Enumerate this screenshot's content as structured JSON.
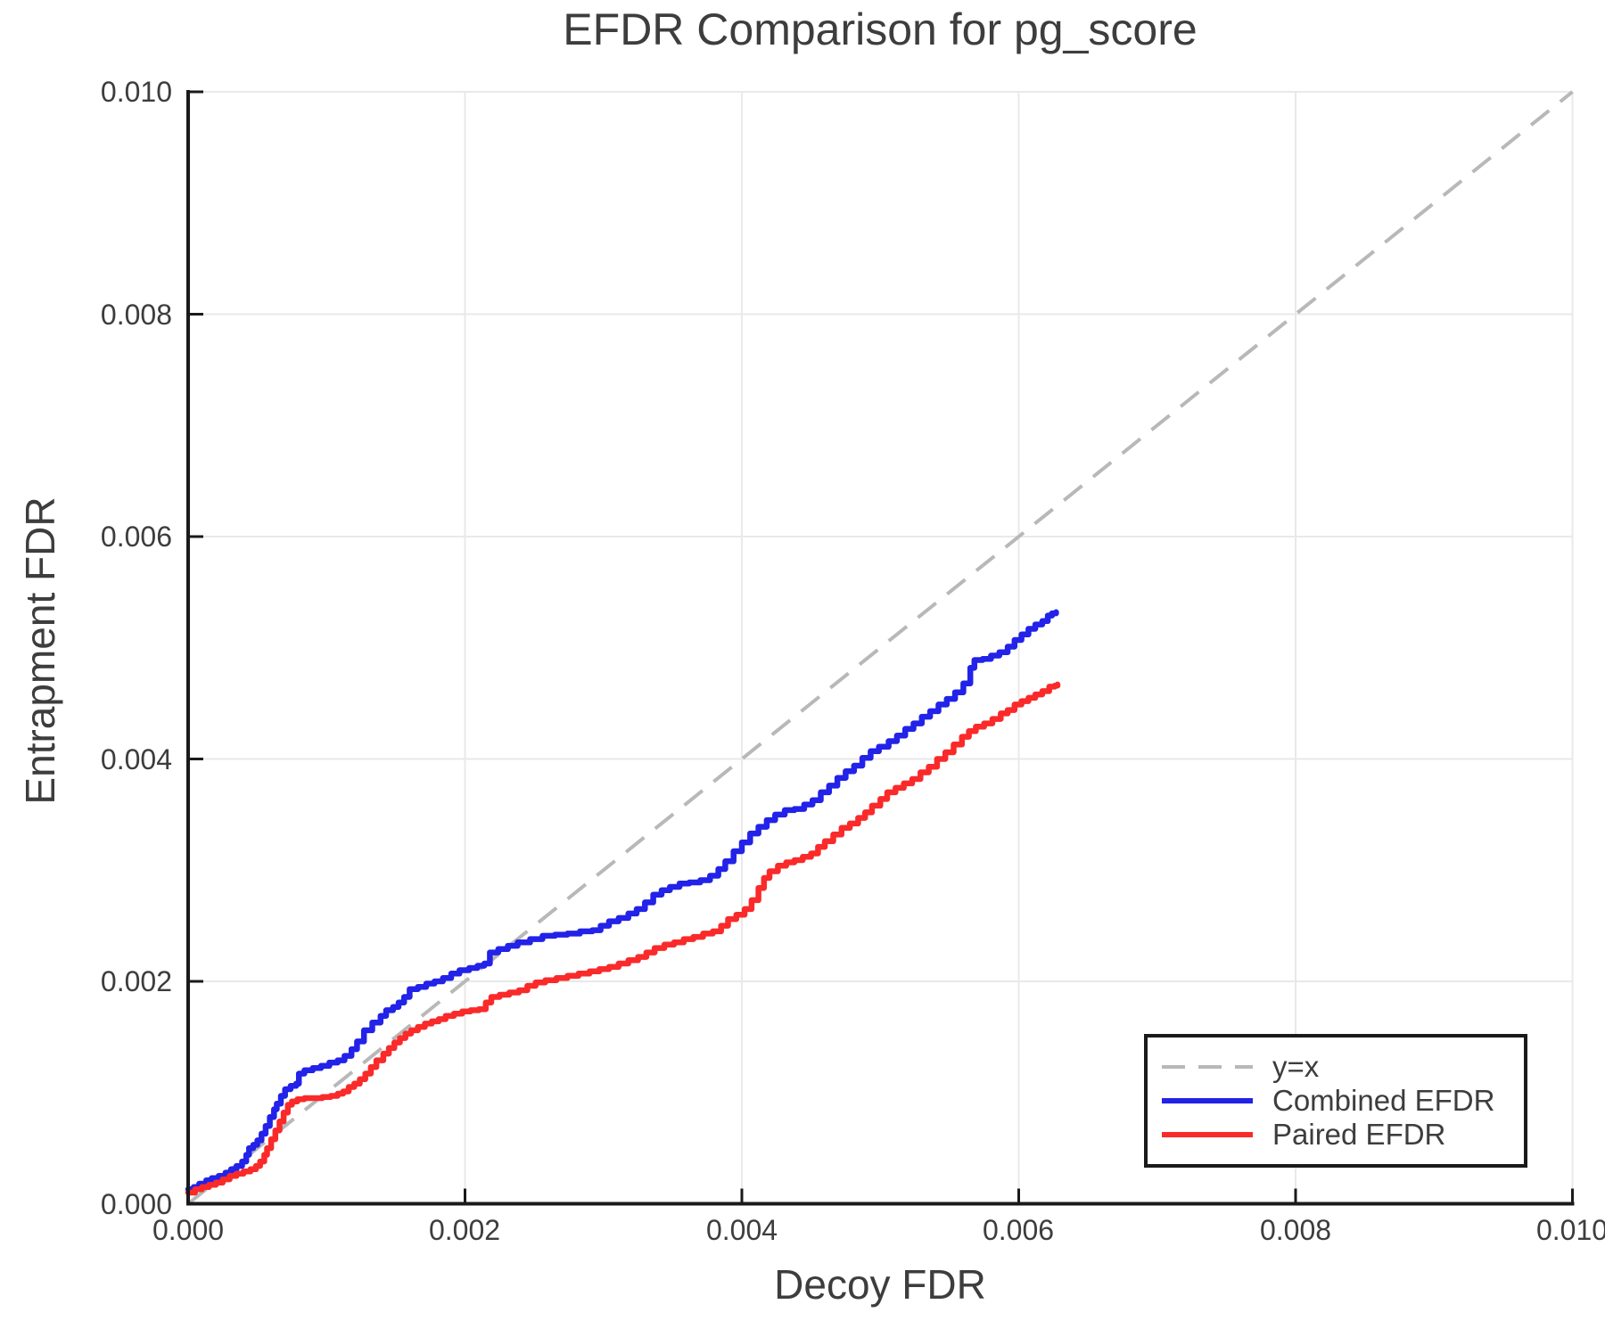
{
  "chart_data": {
    "type": "line",
    "title": "EFDR Comparison for pg_score",
    "xlabel": "Decoy FDR",
    "ylabel": "Entrapment FDR",
    "xlim": [
      0.0,
      0.01
    ],
    "ylim": [
      0.0,
      0.01
    ],
    "grid": true,
    "legend_position": "lower right",
    "x_ticks": [
      0.0,
      0.002,
      0.004,
      0.006,
      0.008,
      0.01
    ],
    "x_tick_labels": [
      "0.000",
      "0.002",
      "0.004",
      "0.006",
      "0.008",
      "0.010"
    ],
    "y_ticks": [
      0.0,
      0.002,
      0.004,
      0.006,
      0.008,
      0.01
    ],
    "y_tick_labels": [
      "0.000",
      "0.002",
      "0.004",
      "0.006",
      "0.008",
      "0.010"
    ],
    "colors": {
      "background": "#ffffff",
      "text": "#3d3d3d",
      "grid": "#e9e9e9",
      "spine": "#1a1a1a",
      "identity": "#b8b8b8",
      "combined": "#2222e8",
      "paired": "#fa2a2a"
    },
    "identity_line": {
      "label": "y=x",
      "color": "#b8b8b8",
      "style": "dashed",
      "x": [
        0.0,
        0.01
      ],
      "y": [
        0.0,
        0.01
      ]
    },
    "series": [
      {
        "name": "Combined EFDR",
        "color": "#2222e8",
        "points": [
          [
            0.0,
            0.00013
          ],
          [
            4e-05,
            0.00015
          ],
          [
            8e-05,
            0.00018
          ],
          [
            0.00013,
            0.00021
          ],
          [
            0.00017,
            0.00023
          ],
          [
            0.00022,
            0.00025
          ],
          [
            0.00027,
            0.00028
          ],
          [
            0.00031,
            0.00031
          ],
          [
            0.00035,
            0.00034
          ],
          [
            0.00039,
            0.00038
          ],
          [
            0.00042,
            0.00044
          ],
          [
            0.00044,
            0.0005
          ],
          [
            0.00047,
            0.00053
          ],
          [
            0.0005,
            0.00057
          ],
          [
            0.00053,
            0.00063
          ],
          [
            0.00056,
            0.0007
          ],
          [
            0.00059,
            0.00078
          ],
          [
            0.00062,
            0.00085
          ],
          [
            0.00064,
            0.0009
          ],
          [
            0.00067,
            0.00097
          ],
          [
            0.0007,
            0.00103
          ],
          [
            0.00074,
            0.00106
          ],
          [
            0.00078,
            0.00108
          ],
          [
            0.0008,
            0.00117
          ],
          [
            0.00084,
            0.0012
          ],
          [
            0.0009,
            0.00122
          ],
          [
            0.00096,
            0.00124
          ],
          [
            0.00102,
            0.00127
          ],
          [
            0.00108,
            0.00129
          ],
          [
            0.00113,
            0.00133
          ],
          [
            0.00118,
            0.00139
          ],
          [
            0.00122,
            0.00146
          ],
          [
            0.00127,
            0.00156
          ],
          [
            0.00133,
            0.00163
          ],
          [
            0.00139,
            0.00169
          ],
          [
            0.00143,
            0.00174
          ],
          [
            0.00148,
            0.00177
          ],
          [
            0.00152,
            0.00181
          ],
          [
            0.00156,
            0.00186
          ],
          [
            0.0016,
            0.00193
          ],
          [
            0.00166,
            0.00195
          ],
          [
            0.00172,
            0.00198
          ],
          [
            0.00178,
            0.002
          ],
          [
            0.00184,
            0.00203
          ],
          [
            0.0019,
            0.00207
          ],
          [
            0.00196,
            0.0021
          ],
          [
            0.00203,
            0.00212
          ],
          [
            0.00209,
            0.00214
          ],
          [
            0.00214,
            0.00216
          ],
          [
            0.00218,
            0.00226
          ],
          [
            0.00224,
            0.00229
          ],
          [
            0.00231,
            0.00232
          ],
          [
            0.00238,
            0.00235
          ],
          [
            0.00247,
            0.00238
          ],
          [
            0.00256,
            0.00241
          ],
          [
            0.00265,
            0.00242
          ],
          [
            0.00274,
            0.00243
          ],
          [
            0.00283,
            0.00245
          ],
          [
            0.00292,
            0.00246
          ],
          [
            0.00298,
            0.0025
          ],
          [
            0.00304,
            0.00254
          ],
          [
            0.00311,
            0.00257
          ],
          [
            0.00318,
            0.00261
          ],
          [
            0.00324,
            0.00265
          ],
          [
            0.0033,
            0.00271
          ],
          [
            0.00336,
            0.00278
          ],
          [
            0.00342,
            0.00282
          ],
          [
            0.00348,
            0.00285
          ],
          [
            0.00355,
            0.00288
          ],
          [
            0.00362,
            0.00289
          ],
          [
            0.0037,
            0.00291
          ],
          [
            0.00377,
            0.00295
          ],
          [
            0.00383,
            0.00301
          ],
          [
            0.00388,
            0.00308
          ],
          [
            0.00394,
            0.00317
          ],
          [
            0.004,
            0.00325
          ],
          [
            0.00406,
            0.00333
          ],
          [
            0.00412,
            0.00339
          ],
          [
            0.00418,
            0.00345
          ],
          [
            0.00424,
            0.0035
          ],
          [
            0.00431,
            0.00354
          ],
          [
            0.00438,
            0.00355
          ],
          [
            0.00445,
            0.00359
          ],
          [
            0.00451,
            0.00363
          ],
          [
            0.00457,
            0.0037
          ],
          [
            0.00463,
            0.00376
          ],
          [
            0.00469,
            0.00383
          ],
          [
            0.00475,
            0.00389
          ],
          [
            0.00481,
            0.00394
          ],
          [
            0.00487,
            0.00401
          ],
          [
            0.00493,
            0.00407
          ],
          [
            0.00499,
            0.00411
          ],
          [
            0.00506,
            0.00416
          ],
          [
            0.00512,
            0.00421
          ],
          [
            0.00518,
            0.00427
          ],
          [
            0.00524,
            0.00432
          ],
          [
            0.0053,
            0.00438
          ],
          [
            0.00536,
            0.00443
          ],
          [
            0.00542,
            0.00449
          ],
          [
            0.00548,
            0.00454
          ],
          [
            0.00554,
            0.0046
          ],
          [
            0.0056,
            0.00468
          ],
          [
            0.00565,
            0.00482
          ],
          [
            0.00568,
            0.00489
          ],
          [
            0.00574,
            0.0049
          ],
          [
            0.0058,
            0.00493
          ],
          [
            0.00586,
            0.00496
          ],
          [
            0.00592,
            0.00501
          ],
          [
            0.00597,
            0.00507
          ],
          [
            0.00602,
            0.00512
          ],
          [
            0.00607,
            0.00517
          ],
          [
            0.00612,
            0.00521
          ],
          [
            0.00617,
            0.00524
          ],
          [
            0.00621,
            0.00529
          ],
          [
            0.00624,
            0.00531
          ],
          [
            0.00627,
            0.00532
          ]
        ]
      },
      {
        "name": "Paired EFDR",
        "color": "#fa2a2a",
        "points": [
          [
            0.0,
            0.0001
          ],
          [
            5e-05,
            0.00013
          ],
          [
            0.0001,
            0.00015
          ],
          [
            0.00015,
            0.00017
          ],
          [
            0.0002,
            0.00019
          ],
          [
            0.00025,
            0.00022
          ],
          [
            0.0003,
            0.00025
          ],
          [
            0.00035,
            0.00027
          ],
          [
            0.0004,
            0.00029
          ],
          [
            0.00045,
            0.00031
          ],
          [
            0.00049,
            0.00034
          ],
          [
            0.00052,
            0.00038
          ],
          [
            0.00055,
            0.00044
          ],
          [
            0.00057,
            0.0005
          ],
          [
            0.0006,
            0.00058
          ],
          [
            0.00063,
            0.00066
          ],
          [
            0.00066,
            0.00074
          ],
          [
            0.00069,
            0.00082
          ],
          [
            0.00072,
            0.00089
          ],
          [
            0.00075,
            0.00092
          ],
          [
            0.00079,
            0.00094
          ],
          [
            0.00084,
            0.00095
          ],
          [
            0.0009,
            0.00095
          ],
          [
            0.00097,
            0.00096
          ],
          [
            0.00103,
            0.00097
          ],
          [
            0.00108,
            0.00099
          ],
          [
            0.00112,
            0.00101
          ],
          [
            0.00116,
            0.00105
          ],
          [
            0.0012,
            0.00108
          ],
          [
            0.00124,
            0.00112
          ],
          [
            0.00128,
            0.00117
          ],
          [
            0.00132,
            0.00123
          ],
          [
            0.00136,
            0.00129
          ],
          [
            0.00141,
            0.00135
          ],
          [
            0.00145,
            0.0014
          ],
          [
            0.00149,
            0.00145
          ],
          [
            0.00153,
            0.00149
          ],
          [
            0.00157,
            0.00153
          ],
          [
            0.00161,
            0.00156
          ],
          [
            0.00166,
            0.00159
          ],
          [
            0.00171,
            0.00162
          ],
          [
            0.00176,
            0.00164
          ],
          [
            0.00181,
            0.00166
          ],
          [
            0.00186,
            0.00169
          ],
          [
            0.00192,
            0.00171
          ],
          [
            0.00198,
            0.00173
          ],
          [
            0.00204,
            0.00174
          ],
          [
            0.0021,
            0.00175
          ],
          [
            0.00215,
            0.00181
          ],
          [
            0.00219,
            0.00186
          ],
          [
            0.00225,
            0.00188
          ],
          [
            0.00232,
            0.0019
          ],
          [
            0.00239,
            0.00192
          ],
          [
            0.00245,
            0.00196
          ],
          [
            0.00251,
            0.00199
          ],
          [
            0.00258,
            0.00201
          ],
          [
            0.00266,
            0.00203
          ],
          [
            0.00274,
            0.00205
          ],
          [
            0.00282,
            0.00207
          ],
          [
            0.0029,
            0.00209
          ],
          [
            0.00297,
            0.00211
          ],
          [
            0.00304,
            0.00213
          ],
          [
            0.00311,
            0.00216
          ],
          [
            0.00318,
            0.00219
          ],
          [
            0.00325,
            0.00222
          ],
          [
            0.00331,
            0.00226
          ],
          [
            0.00337,
            0.0023
          ],
          [
            0.00344,
            0.00233
          ],
          [
            0.00351,
            0.00235
          ],
          [
            0.00358,
            0.00238
          ],
          [
            0.00365,
            0.0024
          ],
          [
            0.00372,
            0.00243
          ],
          [
            0.00379,
            0.00245
          ],
          [
            0.00385,
            0.0025
          ],
          [
            0.0039,
            0.00256
          ],
          [
            0.00396,
            0.0026
          ],
          [
            0.00402,
            0.00265
          ],
          [
            0.00407,
            0.00273
          ],
          [
            0.00412,
            0.00284
          ],
          [
            0.00416,
            0.00293
          ],
          [
            0.0042,
            0.00299
          ],
          [
            0.00426,
            0.00304
          ],
          [
            0.00432,
            0.00307
          ],
          [
            0.00438,
            0.00309
          ],
          [
            0.00444,
            0.00312
          ],
          [
            0.0045,
            0.00315
          ],
          [
            0.00455,
            0.00321
          ],
          [
            0.0046,
            0.00326
          ],
          [
            0.00466,
            0.00332
          ],
          [
            0.00472,
            0.00338
          ],
          [
            0.00478,
            0.00342
          ],
          [
            0.00484,
            0.00347
          ],
          [
            0.00489,
            0.00352
          ],
          [
            0.00494,
            0.00358
          ],
          [
            0.005,
            0.00364
          ],
          [
            0.00505,
            0.0037
          ],
          [
            0.00511,
            0.00374
          ],
          [
            0.00517,
            0.00378
          ],
          [
            0.00523,
            0.00382
          ],
          [
            0.00529,
            0.00388
          ],
          [
            0.00535,
            0.00393
          ],
          [
            0.00541,
            0.004
          ],
          [
            0.00547,
            0.00406
          ],
          [
            0.00553,
            0.00413
          ],
          [
            0.00559,
            0.0042
          ],
          [
            0.00564,
            0.00425
          ],
          [
            0.00569,
            0.00429
          ],
          [
            0.00575,
            0.00432
          ],
          [
            0.00581,
            0.00436
          ],
          [
            0.00587,
            0.00441
          ],
          [
            0.00592,
            0.00444
          ],
          [
            0.00597,
            0.00449
          ],
          [
            0.00602,
            0.00452
          ],
          [
            0.00607,
            0.00455
          ],
          [
            0.00612,
            0.00458
          ],
          [
            0.00617,
            0.00461
          ],
          [
            0.00622,
            0.00465
          ],
          [
            0.00626,
            0.00466
          ],
          [
            0.00628,
            0.00467
          ]
        ]
      }
    ]
  }
}
